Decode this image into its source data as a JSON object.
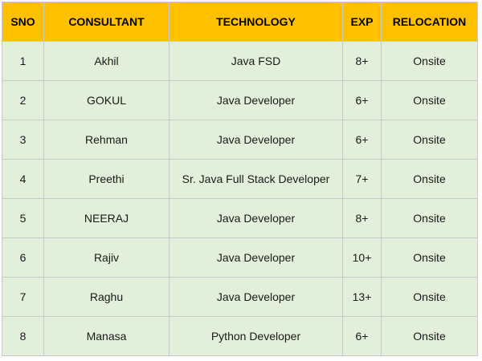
{
  "table": {
    "header_color": "#ffc000",
    "body_color": "#e2efda",
    "columns": [
      "SNO",
      "CONSULTANT",
      "TECHNOLOGY",
      "EXP",
      "RELOCATION"
    ],
    "rows": [
      [
        "1",
        "Akhil",
        "Java FSD",
        "8+",
        "Onsite"
      ],
      [
        "2",
        "GOKUL",
        "Java Developer",
        "6+",
        "Onsite"
      ],
      [
        "3",
        "Rehman",
        "Java Developer",
        "6+",
        "Onsite"
      ],
      [
        "4",
        "Preethi",
        "Sr. Java Full Stack Developer",
        "7+",
        "Onsite"
      ],
      [
        "5",
        "NEERAJ",
        "Java Developer",
        "8+",
        "Onsite"
      ],
      [
        "6",
        "Rajiv",
        "Java Developer",
        "10+",
        "Onsite"
      ],
      [
        "7",
        "Raghu",
        "Java Developer",
        "13+",
        "Onsite"
      ],
      [
        "8",
        "Manasa",
        "Python Developer",
        "6+",
        "Onsite"
      ]
    ]
  }
}
